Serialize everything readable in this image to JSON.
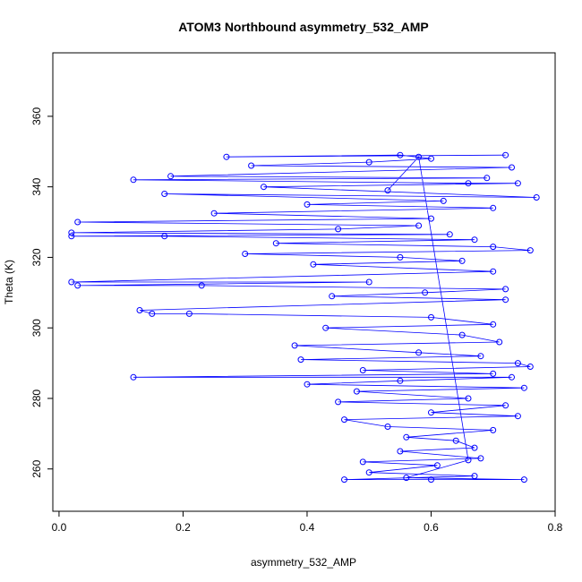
{
  "chart_data": {
    "type": "scatter",
    "title": "ATOM3 Northbound asymmetry_532_AMP",
    "xlabel": "asymmetry_532_AMP",
    "ylabel": "Theta (K)",
    "xlim": [
      -0.01,
      0.8
    ],
    "ylim": [
      248,
      378
    ],
    "x_ticks": [
      0.0,
      0.2,
      0.4,
      0.6,
      0.8
    ],
    "x_tick_labels": [
      "0.0",
      "0.2",
      "0.4",
      "0.6",
      "0.8"
    ],
    "y_ticks": [
      260,
      280,
      300,
      320,
      340,
      360
    ],
    "y_tick_labels": [
      "260",
      "280",
      "300",
      "320",
      "340",
      "360"
    ],
    "marker": "open-circle",
    "connected_by_lines": true,
    "color": "#0000ff",
    "series": [
      {
        "values_xy": [
          [
            0.72,
            349
          ],
          [
            0.27,
            348.5
          ],
          [
            0.55,
            349
          ],
          [
            0.6,
            348
          ],
          [
            0.5,
            347
          ],
          [
            0.31,
            346
          ],
          [
            0.73,
            345.5
          ],
          [
            0.18,
            343
          ],
          [
            0.69,
            342.5
          ],
          [
            0.12,
            342
          ],
          [
            0.66,
            341
          ],
          [
            0.74,
            341
          ],
          [
            0.33,
            340
          ],
          [
            0.77,
            337
          ],
          [
            0.17,
            338
          ],
          [
            0.62,
            336
          ],
          [
            0.4,
            335
          ],
          [
            0.7,
            334
          ],
          [
            0.25,
            332.5
          ],
          [
            0.6,
            331
          ],
          [
            0.03,
            330
          ],
          [
            0.58,
            329
          ],
          [
            0.45,
            328
          ],
          [
            0.02,
            327
          ],
          [
            0.63,
            326.5
          ],
          [
            0.02,
            326
          ],
          [
            0.17,
            326
          ],
          [
            0.67,
            325
          ],
          [
            0.35,
            324
          ],
          [
            0.7,
            323
          ],
          [
            0.76,
            322
          ],
          [
            0.3,
            321
          ],
          [
            0.55,
            320
          ],
          [
            0.65,
            319
          ],
          [
            0.41,
            318
          ],
          [
            0.7,
            316
          ],
          [
            0.02,
            313
          ],
          [
            0.5,
            313
          ],
          [
            0.03,
            312
          ],
          [
            0.23,
            312
          ],
          [
            0.72,
            311
          ],
          [
            0.59,
            310
          ],
          [
            0.44,
            309
          ],
          [
            0.72,
            308
          ],
          [
            0.13,
            305
          ],
          [
            0.15,
            304
          ],
          [
            0.21,
            304
          ],
          [
            0.6,
            303
          ],
          [
            0.7,
            301
          ],
          [
            0.43,
            300
          ],
          [
            0.65,
            298
          ],
          [
            0.71,
            296
          ],
          [
            0.38,
            295
          ],
          [
            0.58,
            293
          ],
          [
            0.68,
            292
          ],
          [
            0.39,
            291
          ],
          [
            0.74,
            290
          ],
          [
            0.76,
            289
          ],
          [
            0.49,
            288
          ],
          [
            0.7,
            287
          ],
          [
            0.12,
            286
          ],
          [
            0.73,
            286
          ],
          [
            0.55,
            285
          ],
          [
            0.4,
            284
          ],
          [
            0.75,
            283
          ],
          [
            0.48,
            282
          ],
          [
            0.66,
            280
          ],
          [
            0.45,
            279
          ],
          [
            0.72,
            278
          ],
          [
            0.6,
            276
          ],
          [
            0.74,
            275
          ],
          [
            0.46,
            274
          ],
          [
            0.53,
            272
          ],
          [
            0.7,
            271
          ],
          [
            0.56,
            269
          ],
          [
            0.64,
            268
          ],
          [
            0.67,
            266
          ],
          [
            0.55,
            265
          ],
          [
            0.68,
            263
          ],
          [
            0.49,
            262
          ],
          [
            0.61,
            261
          ],
          [
            0.5,
            259
          ],
          [
            0.67,
            258
          ],
          [
            0.46,
            257
          ],
          [
            0.6,
            257
          ],
          [
            0.75,
            257
          ],
          [
            0.56,
            257.5
          ],
          [
            0.66,
            262.5
          ],
          [
            0.58,
            348.5
          ],
          [
            0.53,
            339
          ]
        ]
      }
    ]
  }
}
